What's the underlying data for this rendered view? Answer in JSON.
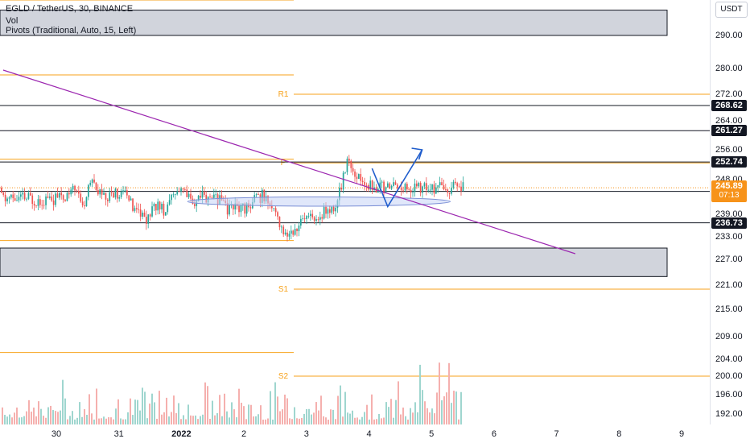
{
  "header": {
    "symbol": "EGLD / TetherUS, 30, BINANCE",
    "vol": "Vol",
    "pivots": "Pivots (Traditional, Auto, 15, Left)"
  },
  "currency_button": "USDT",
  "colors": {
    "up": "#26a69a",
    "down": "#ef5350",
    "pivot": "#f7a21b",
    "trendline": "#9c27b0",
    "arrow": "#1e5ccc",
    "ellipse_fill": "#c7d3f5",
    "zone_fill": "#d1d4dc",
    "current_price_tag": "#f7931a"
  },
  "chart_data": {
    "type": "candlestick",
    "title": "EGLD / TetherUS, 30, BINANCE",
    "x_ticks": [
      "30",
      "31",
      "2022",
      "2",
      "3",
      "4",
      "5",
      "6",
      "7",
      "8",
      "9"
    ],
    "y_ticks": [
      "290.00",
      "280.00",
      "272.00",
      "264.00",
      "256.00",
      "248.00",
      "239.00",
      "233.00",
      "227.00",
      "221.00",
      "215.00",
      "209.00",
      "204.00",
      "200.00",
      "196.00",
      "192.00"
    ],
    "ylim": [
      190,
      297
    ],
    "pivot_levels": [
      {
        "label": "R1",
        "value": 272.0
      },
      {
        "label": "P",
        "value": 252.5
      },
      {
        "label": "S1",
        "value": 220.0
      },
      {
        "label": "S2",
        "value": 200.0
      }
    ],
    "pivot_previous_levels": [
      298.2,
      278.0,
      253.5,
      232.0,
      205.5
    ],
    "horizontal_lines": [
      {
        "value": 268.62,
        "label": "268.62"
      },
      {
        "value": 261.27,
        "label": "261.27"
      },
      {
        "value": 252.74,
        "label": "252.74"
      },
      {
        "value": 244.94,
        "label": "244.94"
      },
      {
        "value": 236.73,
        "label": "236.73"
      }
    ],
    "current_price": {
      "value": 245.89,
      "label": "245.89",
      "countdown": "07:13"
    },
    "zones": [
      {
        "from": 290.0,
        "to": 295.0
      },
      {
        "from": 223.0,
        "to": 230.0
      }
    ],
    "price_path": [
      [
        0,
        244
      ],
      [
        0.15,
        243
      ],
      [
        0.3,
        246
      ],
      [
        0.4,
        240
      ],
      [
        0.5,
        246
      ],
      [
        0.6,
        247
      ],
      [
        0.75,
        243
      ],
      [
        0.9,
        244
      ],
      [
        1.05,
        245
      ],
      [
        1.15,
        242
      ],
      [
        1.3,
        240
      ],
      [
        1.45,
        237
      ],
      [
        1.55,
        242
      ],
      [
        1.7,
        240
      ],
      [
        1.8,
        243
      ],
      [
        1.9,
        245
      ],
      [
        2.05,
        244
      ],
      [
        2.15,
        242
      ],
      [
        2.3,
        244
      ],
      [
        2.45,
        243
      ],
      [
        2.6,
        243
      ],
      [
        2.75,
        240
      ],
      [
        2.9,
        241
      ],
      [
        3.0,
        240
      ],
      [
        3.1,
        242
      ],
      [
        3.2,
        243
      ],
      [
        3.3,
        244
      ],
      [
        3.4,
        241
      ],
      [
        3.5,
        239
      ],
      [
        3.65,
        234
      ],
      [
        3.8,
        235
      ],
      [
        3.95,
        237
      ],
      [
        4.05,
        238
      ],
      [
        4.2,
        239
      ],
      [
        4.35,
        240
      ],
      [
        4.45,
        241
      ],
      [
        4.55,
        246
      ],
      [
        4.65,
        254
      ],
      [
        4.75,
        250
      ],
      [
        4.85,
        248
      ],
      [
        4.95,
        247
      ],
      [
        5.05,
        245.9
      ]
    ],
    "trendline": [
      [
        -0.85,
        279.5
      ],
      [
        8.3,
        228.5
      ]
    ],
    "projection": [
      [
        5.05,
        251
      ],
      [
        5.3,
        241
      ],
      [
        5.85,
        256
      ]
    ],
    "ellipse": {
      "x_center": 4.2,
      "y_center": 242.3,
      "x_half": 2.1,
      "y_half": 1.2
    }
  }
}
